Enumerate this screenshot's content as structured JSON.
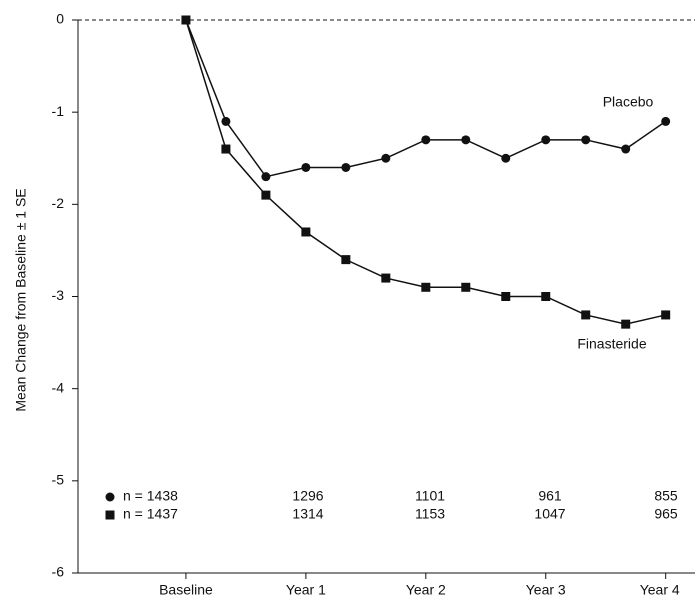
{
  "chart_data": {
    "type": "line",
    "ylabel": "Mean Change from Baseline ± 1 SE",
    "x": [
      0,
      3,
      6,
      9,
      12,
      15,
      18,
      21,
      24,
      27,
      30,
      33,
      36
    ],
    "series": [
      {
        "name": "Placebo",
        "color": "#111111",
        "marker": "circle",
        "values": [
          0,
          -1.1,
          -1.7,
          -1.6,
          -1.6,
          -1.5,
          -1.3,
          -1.3,
          -1.5,
          -1.3,
          -1.3,
          -1.4,
          -1.1
        ]
      },
      {
        "name": "Finasteride",
        "color": "#111111",
        "marker": "square",
        "values": [
          0,
          -1.4,
          -1.9,
          -2.3,
          -2.6,
          -2.8,
          -2.9,
          -2.9,
          -3.0,
          -3.0,
          -3.2,
          -3.3,
          -3.2
        ]
      }
    ],
    "xlim": [
      -8.1,
      38.2
    ],
    "xticks": [
      {
        "value": 0,
        "label": "Baseline"
      },
      {
        "value": 9,
        "label": "Year 1"
      },
      {
        "value": 18,
        "label": "Year 2"
      },
      {
        "value": 27,
        "label": "Year 3"
      },
      {
        "value": 36,
        "label": "Year 4"
      }
    ],
    "ylim": [
      -6,
      0
    ],
    "yticks": [
      0,
      -1,
      -2,
      -3,
      -4,
      -5,
      -6
    ],
    "reference_line": 0,
    "grid": false,
    "counts": [
      [
        "n = 1438",
        "1296",
        "1101",
        "961",
        "855"
      ],
      [
        "n = 1437",
        "1314",
        "1153",
        "1047",
        "965"
      ]
    ]
  }
}
